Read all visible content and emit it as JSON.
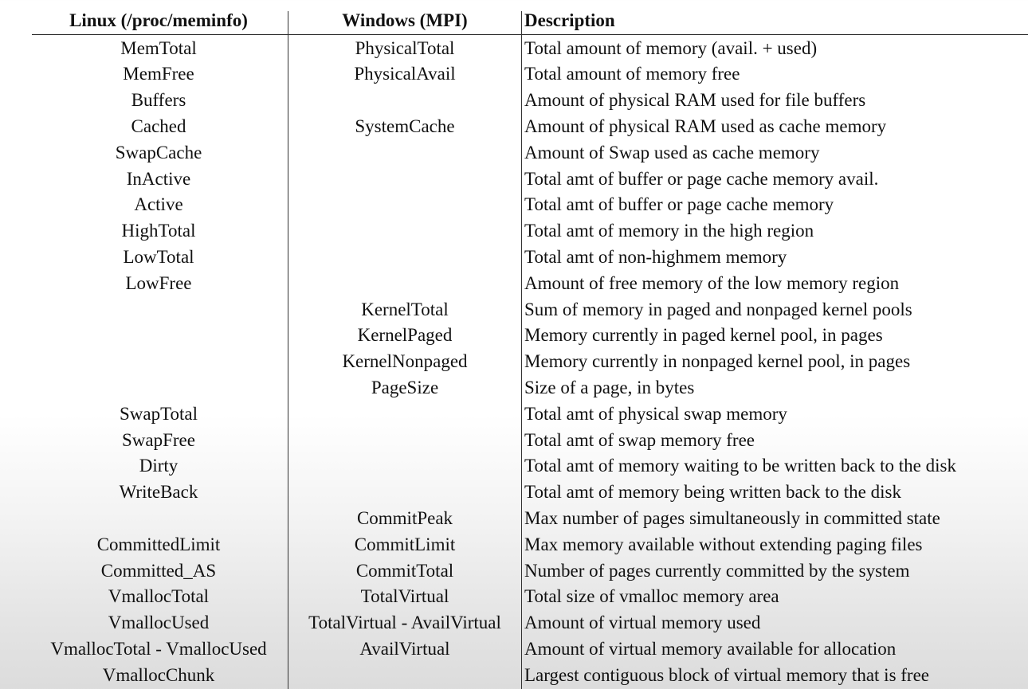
{
  "headers": [
    "Linux (/proc/meminfo)",
    "Windows (MPI)",
    "Description"
  ],
  "rows": [
    [
      "MemTotal",
      "PhysicalTotal",
      "Total amount of memory (avail. + used)"
    ],
    [
      "MemFree",
      "PhysicalAvail",
      "Total amount of memory free"
    ],
    [
      "Buffers",
      "",
      "Amount of physical RAM used for file buffers"
    ],
    [
      "Cached",
      "SystemCache",
      "Amount of physical RAM used as cache memory"
    ],
    [
      "SwapCache",
      "",
      "Amount of Swap used as cache memory"
    ],
    [
      "InActive",
      "",
      "Total amt of buffer or page cache memory avail."
    ],
    [
      "Active",
      "",
      "Total amt of buffer or page cache memory"
    ],
    [
      "HighTotal",
      "",
      "Total amt of memory in the high region"
    ],
    [
      "LowTotal",
      "",
      "Total amt of non-highmem memory"
    ],
    [
      "LowFree",
      "",
      "Amount of free memory of the low memory region"
    ],
    [
      "",
      "KernelTotal",
      "Sum of memory in paged and nonpaged kernel pools"
    ],
    [
      "",
      "KernelPaged",
      "Memory currently in paged kernel pool, in pages"
    ],
    [
      "",
      "KernelNonpaged",
      "Memory currently in nonpaged kernel pool, in pages"
    ],
    [
      "",
      "PageSize",
      "Size of a page, in bytes"
    ],
    [
      "SwapTotal",
      "",
      "Total amt of physical swap memory"
    ],
    [
      "SwapFree",
      "",
      "Total amt of swap memory free"
    ],
    [
      "Dirty",
      "",
      "Total amt of memory waiting to be written back to the disk"
    ],
    [
      "WriteBack",
      "",
      "Total amt of memory being written back to the disk"
    ],
    [
      "",
      "CommitPeak",
      "Max number of pages simultaneously in committed state"
    ],
    [
      "CommittedLimit",
      "CommitLimit",
      "Max memory available without extending paging files"
    ],
    [
      "Committed_AS",
      "CommitTotal",
      "Number of pages currently committed by the system"
    ],
    [
      "VmallocTotal",
      "TotalVirtual",
      "Total size of vmalloc memory area"
    ],
    [
      "VmallocUsed",
      "TotalVirtual - AvailVirtual",
      "Amount of virtual memory used"
    ],
    [
      "VmallocTotal - VmallocUsed",
      "AvailVirtual",
      "Amount of virtual memory available for allocation"
    ],
    [
      "VmallocChunk",
      "",
      "Largest contiguous block of virtual memory that is free"
    ]
  ]
}
